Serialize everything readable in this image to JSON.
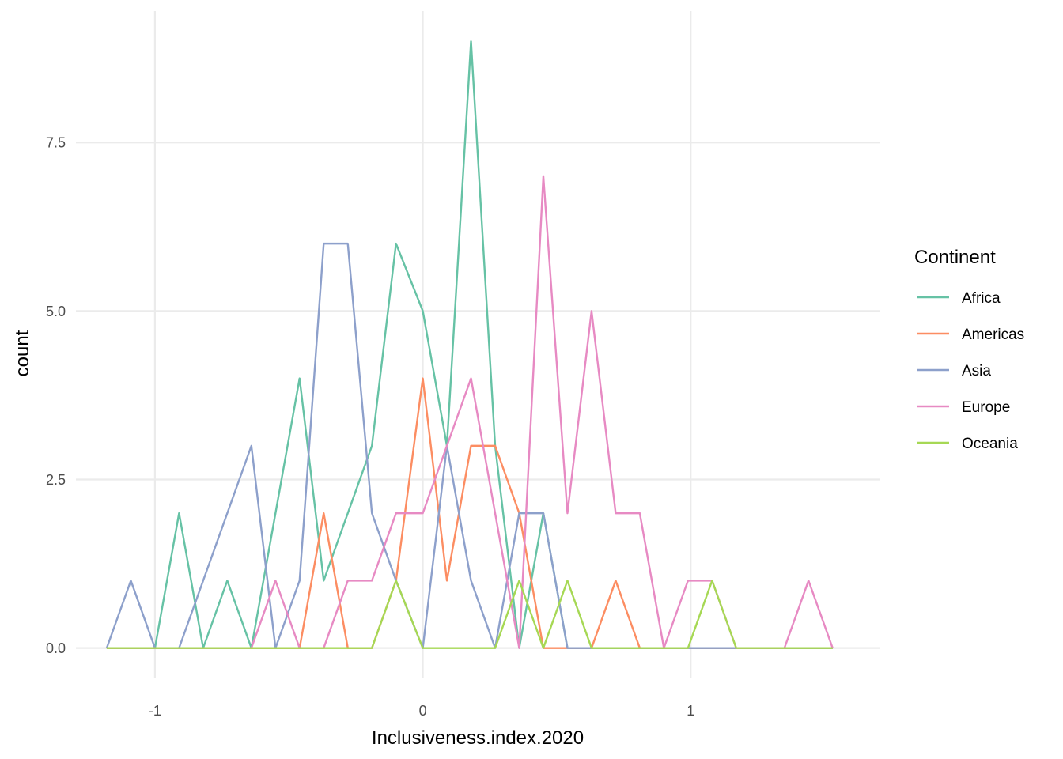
{
  "chart_data": {
    "type": "line",
    "xlabel": "Inclusiveness.index.2020",
    "ylabel": "count",
    "xlim": [
      -1.295,
      1.705
    ],
    "ylim": [
      -0.45,
      9.45
    ],
    "x_ticks": [
      -1,
      0,
      1
    ],
    "x_tick_labels": [
      "-1",
      "0",
      "1"
    ],
    "y_ticks": [
      0,
      2.5,
      5,
      7.5
    ],
    "y_tick_labels": [
      "0.0",
      "2.5",
      "5.0",
      "7.5"
    ],
    "grid": true,
    "legend_position": "right",
    "legend_title": "Continent",
    "x": [
      -1.18,
      -1.09,
      -1.0,
      -0.91,
      -0.82,
      -0.73,
      -0.64,
      -0.55,
      -0.46,
      -0.37,
      -0.28,
      -0.19,
      -0.1,
      0.0,
      0.09,
      0.18,
      0.27,
      0.36,
      0.45,
      0.54,
      0.63,
      0.72,
      0.81,
      0.9,
      0.99,
      1.08,
      1.17,
      1.26,
      1.35,
      1.44,
      1.53
    ],
    "series": [
      {
        "name": "Africa",
        "color": "#66c2a5",
        "values": [
          0,
          0,
          0,
          2,
          0,
          1,
          0,
          2,
          4,
          1,
          2,
          3,
          6,
          5,
          3,
          9,
          3,
          0,
          2,
          0,
          0,
          0,
          0,
          0,
          0,
          0,
          0,
          0,
          0,
          0,
          0
        ]
      },
      {
        "name": "Americas",
        "color": "#fc8d62",
        "values": [
          0,
          0,
          0,
          0,
          0,
          0,
          0,
          0,
          0,
          2,
          0,
          0,
          1,
          4,
          1,
          3,
          3,
          2,
          0,
          0,
          0,
          1,
          0,
          0,
          0,
          0,
          0,
          0,
          0,
          0,
          0
        ]
      },
      {
        "name": "Asia",
        "color": "#8da0cb",
        "values": [
          0,
          1,
          0,
          0,
          1,
          2,
          3,
          0,
          1,
          6,
          6,
          2,
          1,
          0,
          3,
          1,
          0,
          2,
          2,
          0,
          0,
          0,
          0,
          0,
          0,
          0,
          0,
          0,
          0,
          0,
          0
        ]
      },
      {
        "name": "Europe",
        "color": "#e78ac3",
        "values": [
          0,
          0,
          0,
          0,
          0,
          0,
          0,
          1,
          0,
          0,
          1,
          1,
          2,
          2,
          3,
          4,
          2,
          0,
          7,
          2,
          5,
          2,
          2,
          0,
          1,
          1,
          0,
          0,
          0,
          1,
          0
        ]
      },
      {
        "name": "Oceania",
        "color": "#a6d854",
        "values": [
          0,
          0,
          0,
          0,
          0,
          0,
          0,
          0,
          0,
          0,
          0,
          0,
          1,
          0,
          0,
          0,
          0,
          1,
          0,
          1,
          0,
          0,
          0,
          0,
          0,
          1,
          0,
          0,
          0,
          0,
          0
        ]
      }
    ]
  }
}
